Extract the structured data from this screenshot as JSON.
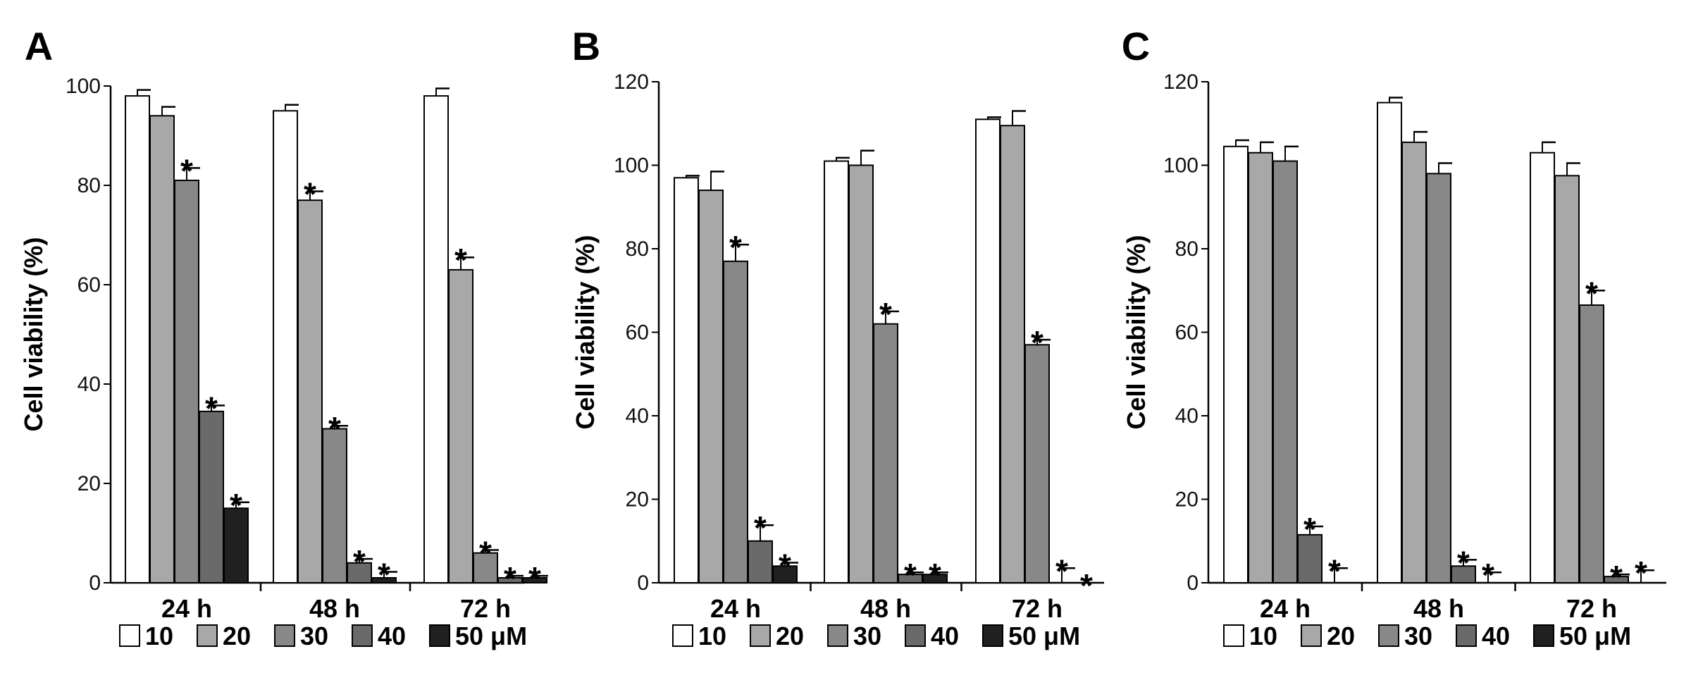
{
  "figure": {
    "colors": {
      "10": "#ffffff",
      "20": "#a8a8a8",
      "30": "#888888",
      "40": "#6a6a6a",
      "50": "#202020",
      "stroke": "#000000"
    }
  },
  "chart_data": [
    {
      "type": "bar",
      "panel": "A",
      "ylabel": "Cell viability (%)",
      "ylim": [
        0,
        100
      ],
      "yticks": [
        0,
        20,
        40,
        60,
        80,
        100
      ],
      "categories": [
        "24 h",
        "48 h",
        "72 h"
      ],
      "legend": [
        "10",
        "20",
        "30",
        "40",
        "50 μM"
      ],
      "series": [
        {
          "name": "10",
          "values": [
            98,
            95,
            98
          ],
          "errors": [
            1.2,
            1.2,
            1.5
          ],
          "sig": [
            false,
            false,
            false
          ]
        },
        {
          "name": "20",
          "values": [
            94,
            77,
            63
          ],
          "errors": [
            1.8,
            1.8,
            2.5
          ],
          "sig": [
            false,
            true,
            true
          ]
        },
        {
          "name": "30",
          "values": [
            81,
            31,
            6
          ],
          "errors": [
            2.5,
            0.6,
            0.6
          ],
          "sig": [
            true,
            true,
            true
          ]
        },
        {
          "name": "40",
          "values": [
            34.5,
            4,
            1
          ],
          "errors": [
            1.2,
            0.8,
            0.4
          ],
          "sig": [
            true,
            true,
            true
          ]
        },
        {
          "name": "50 μM",
          "values": [
            15,
            1,
            1
          ],
          "errors": [
            1.2,
            1.2,
            0.4
          ],
          "sig": [
            true,
            true,
            true
          ]
        }
      ]
    },
    {
      "type": "bar",
      "panel": "B",
      "ylabel": "Cell viability (%)",
      "ylim": [
        0,
        120
      ],
      "yticks": [
        0,
        20,
        40,
        60,
        80,
        100,
        120
      ],
      "categories": [
        "24 h",
        "48 h",
        "72 h"
      ],
      "legend": [
        "10",
        "20",
        "30",
        "40",
        "50 μM"
      ],
      "series": [
        {
          "name": "10",
          "values": [
            97,
            101,
            111
          ],
          "errors": [
            0.5,
            0.8,
            0.5
          ],
          "sig": [
            false,
            false,
            false
          ]
        },
        {
          "name": "20",
          "values": [
            94,
            100,
            109.5
          ],
          "errors": [
            4.5,
            3.5,
            3.5
          ],
          "sig": [
            false,
            false,
            false
          ]
        },
        {
          "name": "30",
          "values": [
            77,
            62,
            57
          ],
          "errors": [
            4,
            3,
            1.2
          ],
          "sig": [
            true,
            true,
            true
          ]
        },
        {
          "name": "40",
          "values": [
            10,
            2,
            0
          ],
          "errors": [
            3.8,
            0.5,
            3.5
          ],
          "sig": [
            true,
            true,
            true
          ]
        },
        {
          "name": "50 μM",
          "values": [
            4,
            2,
            0
          ],
          "errors": [
            0.8,
            0.5,
            0
          ],
          "sig": [
            true,
            true,
            true
          ]
        }
      ]
    },
    {
      "type": "bar",
      "panel": "C",
      "ylabel": "Cell viability (%)",
      "ylim": [
        0,
        120
      ],
      "yticks": [
        0,
        20,
        40,
        60,
        80,
        100,
        120
      ],
      "categories": [
        "24 h",
        "48 h",
        "72 h"
      ],
      "legend": [
        "10",
        "20",
        "30",
        "40",
        "50 μM"
      ],
      "series": [
        {
          "name": "10",
          "values": [
            104.5,
            115,
            103
          ],
          "errors": [
            1.5,
            1.2,
            2.5
          ],
          "sig": [
            false,
            false,
            false
          ]
        },
        {
          "name": "20",
          "values": [
            103,
            105.5,
            97.5
          ],
          "errors": [
            2.5,
            2.5,
            3
          ],
          "sig": [
            false,
            false,
            false
          ]
        },
        {
          "name": "30",
          "values": [
            101,
            98,
            66.5
          ],
          "errors": [
            3.5,
            2.5,
            3.5
          ],
          "sig": [
            false,
            false,
            true
          ]
        },
        {
          "name": "40",
          "values": [
            11.5,
            4,
            1.5
          ],
          "errors": [
            2,
            1.5,
            0.5
          ],
          "sig": [
            true,
            true,
            true
          ]
        },
        {
          "name": "50 μM",
          "values": [
            0,
            0,
            0
          ],
          "errors": [
            3.5,
            2.5,
            3
          ],
          "sig": [
            true,
            true,
            true
          ]
        }
      ]
    }
  ]
}
